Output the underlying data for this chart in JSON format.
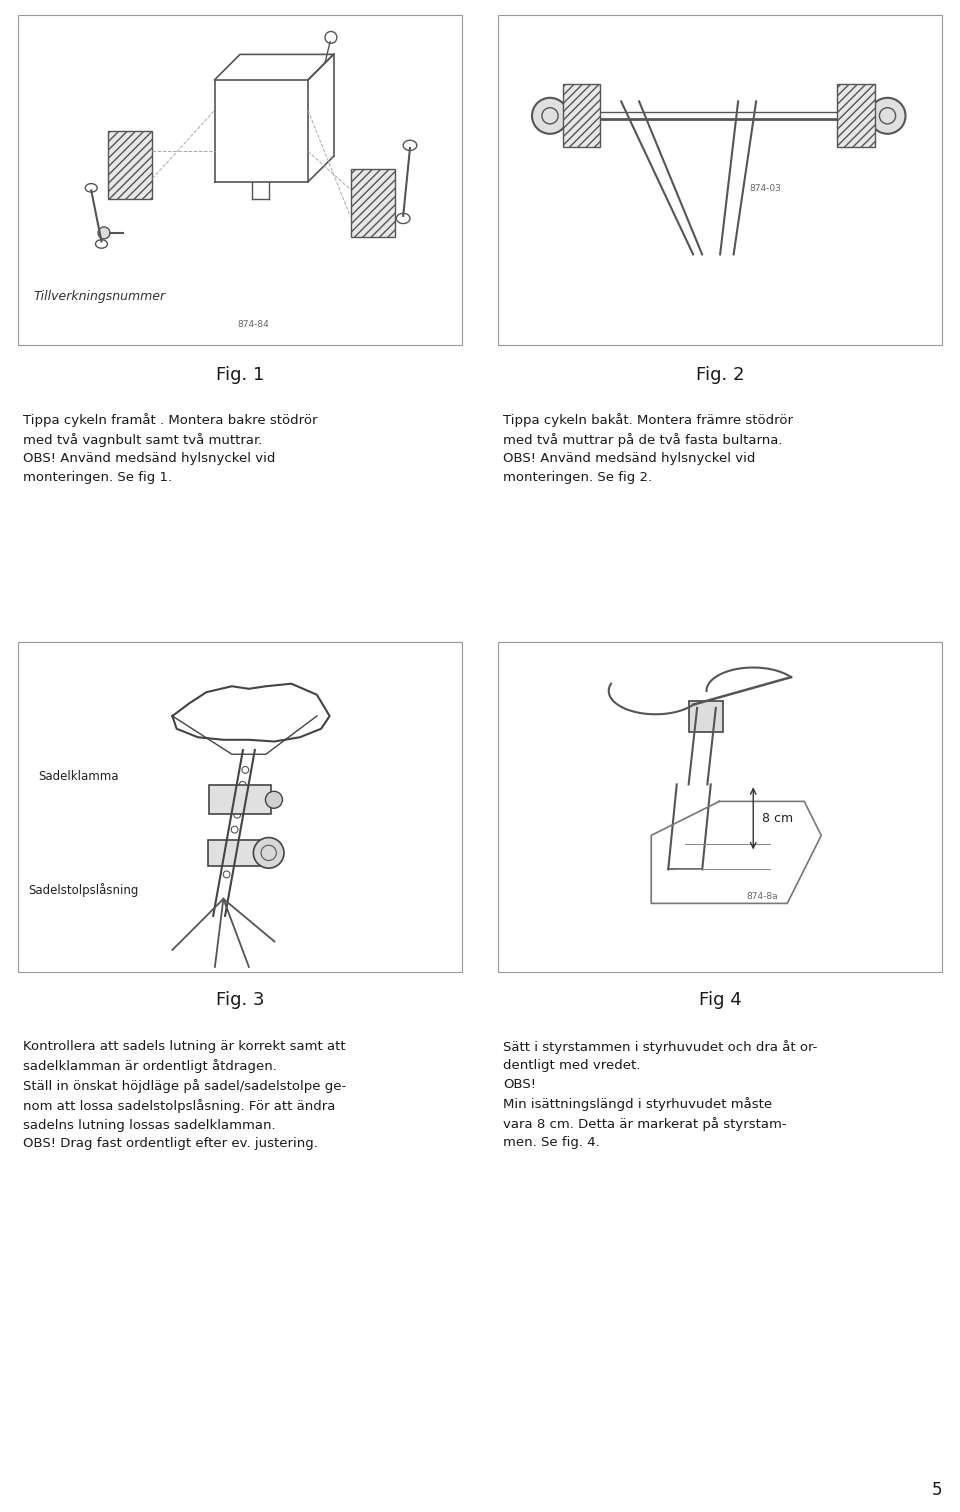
{
  "page_bg": "#ffffff",
  "border_color": "#999999",
  "text_color": "#1a1a1a",
  "fig1_label": "Fig. 1",
  "fig2_label": "Fig. 2",
  "fig3_label": "Fig. 3",
  "fig4_label": "Fig 4",
  "fig1_caption": "Tippa cykeln framåt . Montera bakre stödrör\nmed två vagnbult samt två muttrar.\nOBS! Använd medsänd hylsnyckel vid\nmonteringen. Se fig 1.",
  "fig2_caption": "Tippa cykeln bakåt. Montera främre stödrör\nmed två muttrar på de två fasta bultarna.\nOBS! Använd medsänd hylsnyckel vid\nmonteringen. Se fig 2.",
  "fig3_caption": "Kontrollera att sadels lutning är korrekt samt att\nsadelklamman är ordentligt åtdragen.\nStäll in önskat höjdläge på sadel/sadelstolpe ge-\nnom att lossa sadelstolpslåsning. För att ändra\nsadelns lutning lossas sadelklamman.\nOBS! Drag fast ordentligt efter ev. justering.",
  "fig4_caption": "Sätt i styrstammen i styrhuvudet och dra åt or-\ndentligt med vredet.\nOBS!\nMin isättningslängd i styrhuvudet måste\nvara 8 cm. Detta är markerat på styrstam-\nmen. Se fig. 4.",
  "fig3_label1": "Sadelklamma",
  "fig3_label2": "Sadelstolpslåsning",
  "fig4_label1": "8 cm",
  "page_number": "5",
  "tillverkningsnummer_label": "Tillverkningsnummer",
  "part_num_fig1": "874-84",
  "part_num_fig2": "874-03",
  "part_num_fig4": "874-8a"
}
